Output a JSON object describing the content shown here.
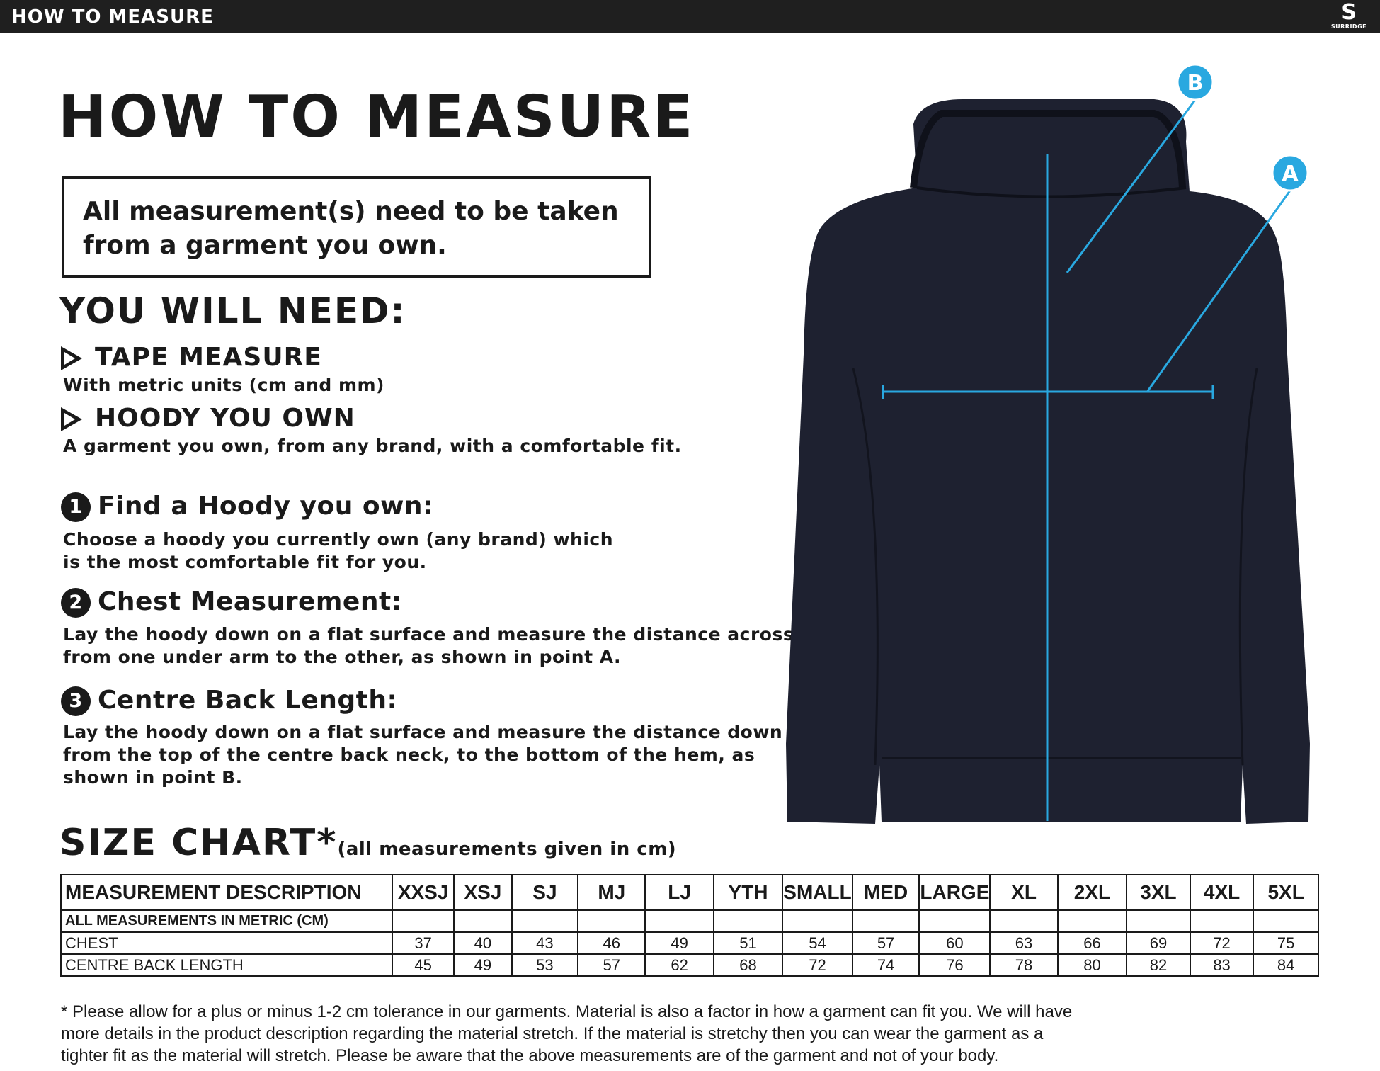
{
  "header": {
    "title": "HOW TO MEASURE",
    "brand": "SURRIDGE"
  },
  "title": "HOW TO MEASURE",
  "notice": "All measurement(s) need to be taken from a garment you own.",
  "need": {
    "heading": "YOU WILL NEED:",
    "items": [
      {
        "label": "TAPE MEASURE",
        "desc": "With metric units (cm and mm)"
      },
      {
        "label": "HOODY YOU OWN",
        "desc": "A garment you own, from any brand, with a comfortable fit."
      }
    ]
  },
  "steps": [
    {
      "num": "1",
      "title": "Find a Hoody you own:",
      "lines": [
        "Choose a hoody you currently own (any brand) which",
        "is the most comfortable fit for you."
      ]
    },
    {
      "num": "2",
      "title": "Chest Measurement:",
      "lines": [
        "Lay the hoody down on a flat surface and measure the distance across,",
        "from one under arm to the other, as shown in point A."
      ]
    },
    {
      "num": "3",
      "title": "Centre Back Length:",
      "lines": [
        "Lay the hoody down on a flat surface and measure the distance down",
        "from the top of the centre back neck, to the bottom of the hem, as",
        "shown in point B."
      ]
    }
  ],
  "diagram": {
    "point_a": "A",
    "point_b": "B",
    "line_color": "#29a8e0",
    "garment_color": "#1e2130"
  },
  "size_chart": {
    "title": "SIZE CHART*",
    "note": "(all measurements given in cm)",
    "headers": [
      "MEASUREMENT DESCRIPTION",
      "XXSJ",
      "XSJ",
      "SJ",
      "MJ",
      "LJ",
      "YTH",
      "SMALL",
      "MED",
      "LARGE",
      "XL",
      "2XL",
      "3XL",
      "4XL",
      "5XL"
    ],
    "rows": [
      {
        "label": "ALL MEASUREMENTS IN METRIC (CM)",
        "values": [
          "",
          "",
          "",
          "",
          "",
          "",
          "",
          "",
          "",
          "",
          "",
          "",
          "",
          ""
        ]
      },
      {
        "label": "CHEST",
        "values": [
          "37",
          "40",
          "43",
          "46",
          "49",
          "51",
          "54",
          "57",
          "60",
          "63",
          "66",
          "69",
          "72",
          "75"
        ]
      },
      {
        "label": "CENTRE BACK LENGTH",
        "values": [
          "45",
          "49",
          "53",
          "57",
          "62",
          "68",
          "72",
          "74",
          "76",
          "78",
          "80",
          "82",
          "83",
          "84"
        ]
      }
    ]
  },
  "footnote": [
    "* Please allow for a plus or minus 1-2 cm tolerance in our garments. Material is also a factor in how a garment can fit you. We will have",
    "more details in the product description regarding the material stretch.  If the material is stretchy then you can wear the garment as a",
    "tighter fit as the material will stretch.  Please be aware that the above measurements are of the garment and not of your body."
  ]
}
